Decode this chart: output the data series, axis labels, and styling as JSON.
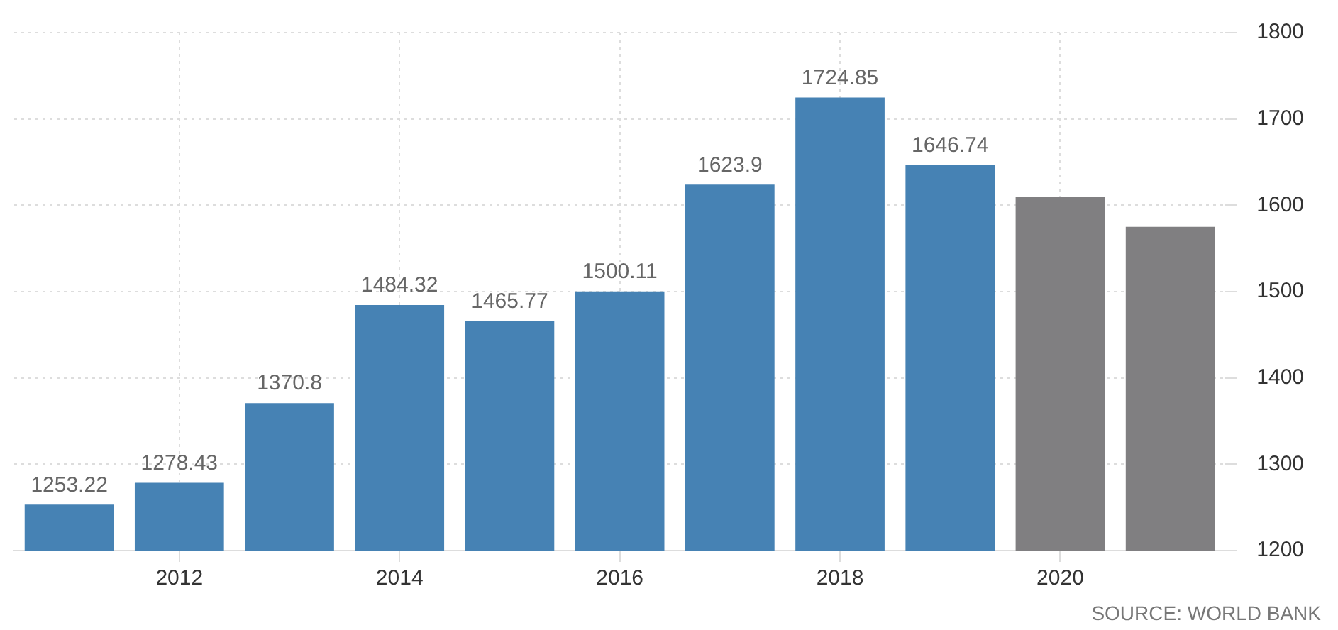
{
  "chart_data": {
    "type": "bar",
    "categories": [
      null,
      "2012",
      null,
      "2014",
      null,
      "2016",
      null,
      "2018",
      null,
      "2020",
      null
    ],
    "values": [
      1253.22,
      1278.43,
      1370.8,
      1484.32,
      1465.77,
      1500.11,
      1623.9,
      1724.85,
      1646.74,
      1610,
      1575
    ],
    "colors": [
      "#4682b4",
      "#4682b4",
      "#4682b4",
      "#4682b4",
      "#4682b4",
      "#4682b4",
      "#4682b4",
      "#4682b4",
      "#4682b4",
      "#807f81",
      "#807f81"
    ],
    "value_labels": [
      "1253.22",
      "1278.43",
      "1370.8",
      "1484.32",
      "1465.77",
      "1500.11",
      "1623.9",
      "1724.85",
      "1646.74",
      null,
      null
    ],
    "ylim": [
      1200,
      1800
    ],
    "yticks": [
      1200,
      1300,
      1400,
      1500,
      1600,
      1700,
      1800
    ],
    "grid": true,
    "legend": false,
    "annotations": [
      "SOURCE: WORLD BANK"
    ]
  }
}
